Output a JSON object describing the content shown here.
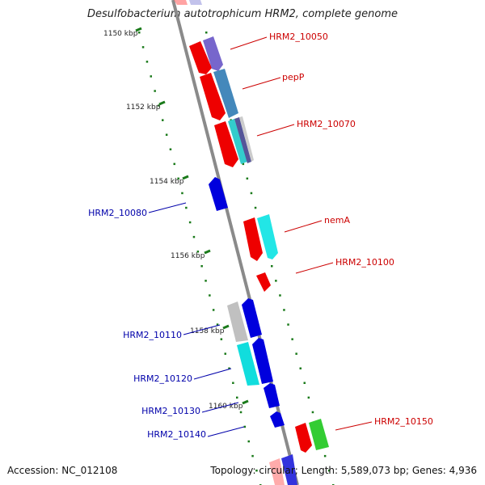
{
  "title": "Desulfobacterium autotrophicum HRM2, complete genome",
  "footer": {
    "accession": "Accession: NC_012108",
    "summary": "Topology: circular; Length: 5,589,073 bp; Genes: 4,936"
  },
  "scale_labels": [
    "1150 kbp",
    "1152 kbp",
    "1154 kbp",
    "1156 kbp",
    "1158 kbp",
    "1160 kbp"
  ],
  "colors": {
    "forward_gene": "#ff0000",
    "reverse_gene": "#0000ee",
    "forward_label": "#cc0000",
    "reverse_label": "#0000aa",
    "tick": "#1a7a1a",
    "backbone": "#888888"
  },
  "right_labels": [
    "HRM2_10050",
    "pepP",
    "HRM2_10070",
    "nemA",
    "HRM2_10100",
    "HRM2_10150"
  ],
  "left_labels": [
    "HRM2_10080",
    "HRM2_10110",
    "HRM2_10120",
    "HRM2_10130",
    "HRM2_10140"
  ]
}
